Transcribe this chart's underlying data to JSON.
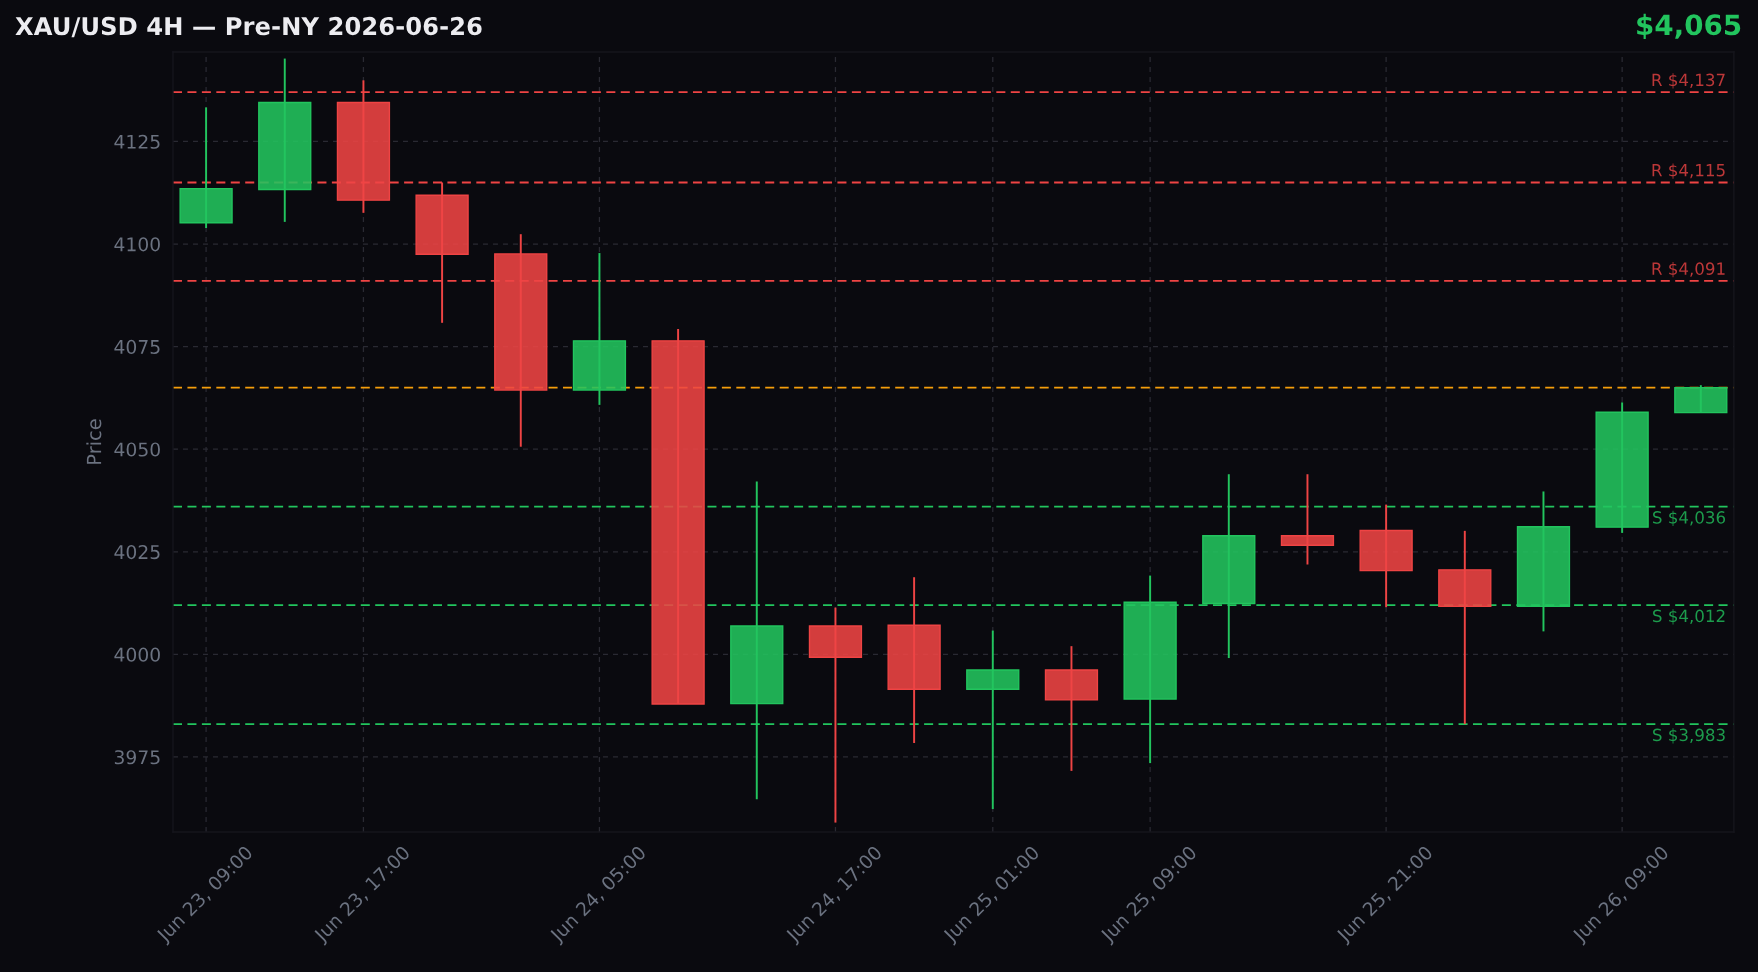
{
  "chart_data": {
    "type": "candlestick",
    "title": "XAU/USD 4H — Pre-NY 2026-06-26",
    "ylabel": "Price",
    "x": [
      "2026-06-23T09:00",
      "2026-06-23T13:00",
      "2026-06-23T17:00",
      "2026-06-23T21:00",
      "2026-06-24T01:00",
      "2026-06-24T05:00",
      "2026-06-24T09:00",
      "2026-06-24T13:00",
      "2026-06-24T17:00",
      "2026-06-24T21:00",
      "2026-06-25T01:00",
      "2026-06-25T05:00",
      "2026-06-25T09:00",
      "2026-06-25T13:00",
      "2026-06-25T17:00",
      "2026-06-25T21:00",
      "2026-06-26T01:00",
      "2026-06-26T05:00",
      "2026-06-26T09:00",
      "2026-06-26T13:00"
    ],
    "ohlc": [
      [
        4105.2,
        4133.3,
        4103.9,
        4113.5
      ],
      [
        4113.3,
        4145.2,
        4105.4,
        4134.5
      ],
      [
        4134.5,
        4139.9,
        4107.6,
        4110.7
      ],
      [
        4111.9,
        4115.0,
        4080.8,
        4097.5
      ],
      [
        4097.6,
        4102.4,
        4050.6,
        4064.4
      ],
      [
        4064.4,
        4097.8,
        4060.8,
        4076.4
      ],
      [
        4076.4,
        4079.3,
        3987.9,
        3987.9
      ],
      [
        3988.0,
        4042.1,
        3964.7,
        4006.9
      ],
      [
        4006.9,
        4011.4,
        3959.0,
        3999.3
      ],
      [
        4007.1,
        4018.8,
        3978.4,
        3991.5
      ],
      [
        3991.5,
        4005.8,
        3962.3,
        3996.2
      ],
      [
        3996.2,
        4002.0,
        3971.6,
        3988.9
      ],
      [
        3989.1,
        4019.2,
        3973.5,
        4012.7
      ],
      [
        4012.4,
        4043.9,
        3999.1,
        4028.9
      ],
      [
        4028.9,
        4043.9,
        4021.9,
        4026.6
      ],
      [
        4030.2,
        4036.5,
        4011.5,
        4020.4
      ],
      [
        4020.6,
        4030.1,
        3983.0,
        4011.7
      ],
      [
        4011.7,
        4039.7,
        4005.6,
        4031.1
      ],
      [
        4031.0,
        4061.4,
        4029.6,
        4059.0
      ],
      [
        4058.9,
        4065.6,
        4058.9,
        4065.0
      ]
    ],
    "colors": [
      "#22c55e",
      "#22c55e",
      "#ef4444",
      "#ef4444",
      "#ef4444",
      "#22c55e",
      "#ef4444",
      "#22c55e",
      "#ef4444",
      "#ef4444",
      "#22c55e",
      "#ef4444",
      "#22c55e",
      "#22c55e",
      "#ef4444",
      "#ef4444",
      "#ef4444",
      "#22c55e",
      "#22c55e",
      "#22c55e"
    ],
    "xlim": [
      "2026-06-23T07:19",
      "2026-06-26T14:41"
    ],
    "ylim": [
      3956.7,
      4146.8
    ],
    "xticks": [
      {
        "value": "2026-06-23T09:00",
        "label": "Jun 23, 09:00"
      },
      {
        "value": "2026-06-23T17:00",
        "label": "Jun 23, 17:00"
      },
      {
        "value": "2026-06-24T05:00",
        "label": "Jun 24, 05:00"
      },
      {
        "value": "2026-06-24T17:00",
        "label": "Jun 24, 17:00"
      },
      {
        "value": "2026-06-25T01:00",
        "label": "Jun 25, 01:00"
      },
      {
        "value": "2026-06-25T09:00",
        "label": "Jun 25, 09:00"
      },
      {
        "value": "2026-06-25T21:00",
        "label": "Jun 25, 21:00"
      },
      {
        "value": "2026-06-26T09:00",
        "label": "Jun 26, 09:00"
      }
    ],
    "yticks": [
      3975,
      4000,
      4025,
      4050,
      4075,
      4100,
      4125
    ],
    "grid": true,
    "ref_lines": [
      {
        "axis": "y",
        "value": 4137,
        "label": "R $4,137",
        "color": "#ef4444",
        "line_style": "dashed"
      },
      {
        "axis": "y",
        "value": 4115,
        "label": "R $4,115",
        "color": "#ef4444",
        "line_style": "dashed"
      },
      {
        "axis": "y",
        "value": 4091,
        "label": "R $4,091",
        "color": "#ef4444",
        "line_style": "dashed"
      },
      {
        "axis": "y",
        "value": 4065,
        "color": "#f59e0b",
        "line_style": "dashed"
      },
      {
        "axis": "y",
        "value": 4036,
        "label": "S $4,036",
        "color": "#22c55e",
        "line_style": "dashed"
      },
      {
        "axis": "y",
        "value": 4012,
        "label": "S $4,012",
        "color": "#22c55e",
        "line_style": "dashed"
      },
      {
        "axis": "y",
        "value": 3983,
        "label": "S $3,983",
        "color": "#22c55e",
        "line_style": "dashed"
      }
    ],
    "annotations": [
      "$4,065"
    ]
  }
}
